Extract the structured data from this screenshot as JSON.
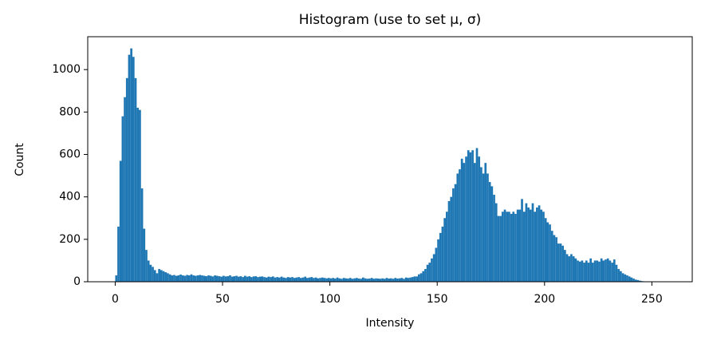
{
  "chart_data": {
    "type": "histogram",
    "title": "Histogram (use to set μ, σ)",
    "x_label": "Intensity",
    "y_label": "Count",
    "color": "#1f77b4",
    "bins": [
      0,
      1,
      2,
      3,
      4,
      5,
      6,
      7,
      8,
      9,
      10,
      11,
      12,
      13,
      14,
      15,
      16,
      17,
      18,
      19,
      20,
      21,
      22,
      23,
      24,
      25,
      26,
      27,
      28,
      29,
      30,
      31,
      32,
      33,
      34,
      35,
      36,
      37,
      38,
      39,
      40,
      41,
      42,
      43,
      44,
      45,
      46,
      47,
      48,
      49,
      50,
      51,
      52,
      53,
      54,
      55,
      56,
      57,
      58,
      59,
      60,
      61,
      62,
      63,
      64,
      65,
      66,
      67,
      68,
      69,
      70,
      71,
      72,
      73,
      74,
      75,
      76,
      77,
      78,
      79,
      80,
      81,
      82,
      83,
      84,
      85,
      86,
      87,
      88,
      89,
      90,
      91,
      92,
      93,
      94,
      95,
      96,
      97,
      98,
      99,
      100,
      101,
      102,
      103,
      104,
      105,
      106,
      107,
      108,
      109,
      110,
      111,
      112,
      113,
      114,
      115,
      116,
      117,
      118,
      119,
      120,
      121,
      122,
      123,
      124,
      125,
      126,
      127,
      128,
      129,
      130,
      131,
      132,
      133,
      134,
      135,
      136,
      137,
      138,
      139,
      140,
      141,
      142,
      143,
      144,
      145,
      146,
      147,
      148,
      149,
      150,
      151,
      152,
      153,
      154,
      155,
      156,
      157,
      158,
      159,
      160,
      161,
      162,
      163,
      164,
      165,
      166,
      167,
      168,
      169,
      170,
      171,
      172,
      173,
      174,
      175,
      176,
      177,
      178,
      179,
      180,
      181,
      182,
      183,
      184,
      185,
      186,
      187,
      188,
      189,
      190,
      191,
      192,
      193,
      194,
      195,
      196,
      197,
      198,
      199,
      200,
      201,
      202,
      203,
      204,
      205,
      206,
      207,
      208,
      209,
      210,
      211,
      212,
      213,
      214,
      215,
      216,
      217,
      218,
      219,
      220,
      221,
      222,
      223,
      224,
      225,
      226,
      227,
      228,
      229,
      230,
      231,
      232,
      233,
      234,
      235,
      236,
      237,
      238,
      239,
      240,
      241,
      242,
      243,
      244,
      245,
      246,
      247,
      248,
      249,
      250,
      251,
      252,
      253,
      254,
      255,
      256
    ],
    "values": [
      30,
      260,
      570,
      780,
      870,
      960,
      1070,
      1100,
      1060,
      960,
      820,
      810,
      440,
      250,
      150,
      100,
      80,
      70,
      55,
      40,
      60,
      55,
      50,
      45,
      40,
      35,
      30,
      32,
      28,
      30,
      34,
      30,
      28,
      32,
      30,
      35,
      30,
      28,
      30,
      32,
      30,
      28,
      26,
      30,
      28,
      25,
      30,
      28,
      26,
      24,
      28,
      25,
      26,
      30,
      24,
      26,
      28,
      24,
      26,
      22,
      28,
      24,
      26,
      22,
      25,
      26,
      22,
      24,
      25,
      22,
      20,
      24,
      22,
      25,
      20,
      22,
      20,
      24,
      20,
      18,
      22,
      20,
      22,
      18,
      20,
      22,
      18,
      20,
      24,
      18,
      20,
      22,
      18,
      20,
      16,
      18,
      20,
      18,
      16,
      18,
      16,
      18,
      15,
      20,
      16,
      14,
      18,
      16,
      15,
      18,
      14,
      16,
      18,
      15,
      14,
      20,
      16,
      14,
      15,
      18,
      14,
      16,
      15,
      14,
      16,
      14,
      18,
      15,
      16,
      14,
      18,
      15,
      16,
      18,
      14,
      20,
      18,
      20,
      22,
      25,
      25,
      35,
      40,
      50,
      60,
      80,
      90,
      110,
      130,
      160,
      200,
      230,
      260,
      300,
      330,
      380,
      400,
      440,
      460,
      510,
      530,
      580,
      560,
      590,
      620,
      610,
      620,
      560,
      630,
      590,
      540,
      510,
      560,
      510,
      470,
      450,
      410,
      370,
      310,
      310,
      330,
      340,
      330,
      330,
      320,
      330,
      320,
      340,
      340,
      390,
      330,
      370,
      350,
      340,
      370,
      330,
      350,
      360,
      340,
      330,
      300,
      280,
      270,
      240,
      220,
      210,
      180,
      180,
      170,
      150,
      130,
      120,
      130,
      120,
      110,
      100,
      95,
      100,
      90,
      100,
      90,
      110,
      90,
      100,
      100,
      95,
      110,
      100,
      105,
      110,
      100,
      90,
      105,
      80,
      60,
      50,
      40,
      35,
      30,
      25,
      20,
      15,
      10,
      8,
      5,
      3,
      0,
      0,
      0,
      0,
      0,
      0,
      0,
      0,
      0,
      0
    ],
    "xlim": [
      -12.8,
      268.8
    ],
    "ylim": [
      0,
      1155
    ],
    "xticks": [
      0,
      50,
      100,
      150,
      200,
      250
    ],
    "yticks": [
      0,
      200,
      400,
      600,
      800,
      1000
    ]
  }
}
